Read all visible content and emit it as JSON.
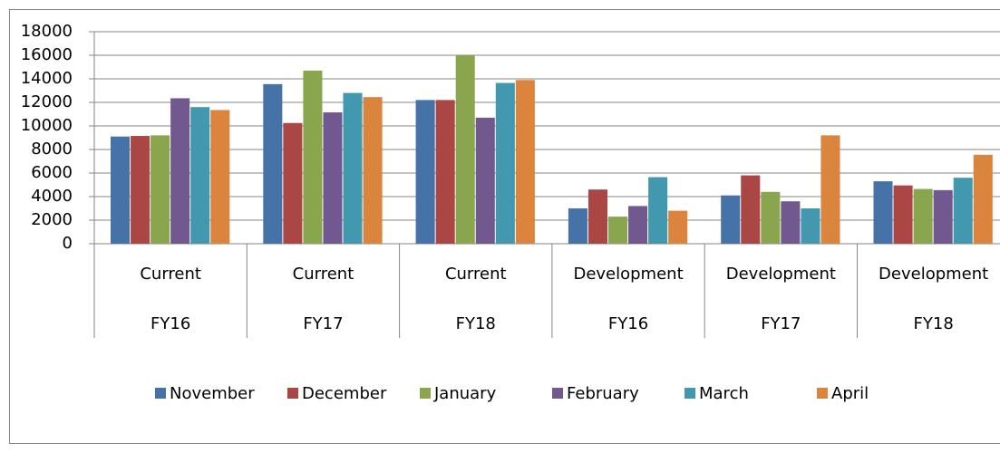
{
  "chart_data": {
    "type": "bar",
    "categories": [
      [
        "Current",
        "FY16"
      ],
      [
        "Current",
        "FY17"
      ],
      [
        "Current",
        "FY18"
      ],
      [
        "Development",
        "FY16"
      ],
      [
        "Development",
        "FY17"
      ],
      [
        "Development",
        "FY18"
      ]
    ],
    "series": [
      {
        "name": "November",
        "color": "#4572a7",
        "values": [
          9100,
          13550,
          12200,
          3000,
          4100,
          5300
        ]
      },
      {
        "name": "December",
        "color": "#aa4643",
        "values": [
          9150,
          10250,
          12200,
          4600,
          5800,
          4950
        ]
      },
      {
        "name": "January",
        "color": "#89a54e",
        "values": [
          9200,
          14700,
          16000,
          2300,
          4400,
          4650
        ]
      },
      {
        "name": "February",
        "color": "#71588f",
        "values": [
          12350,
          11150,
          10700,
          3200,
          3600,
          4550
        ]
      },
      {
        "name": "March",
        "color": "#4198af",
        "values": [
          11600,
          12800,
          13650,
          5650,
          3000,
          5600
        ]
      },
      {
        "name": "April",
        "color": "#db843d",
        "values": [
          11350,
          12450,
          13900,
          2800,
          9200,
          7550
        ]
      }
    ],
    "ylim": [
      0,
      18000
    ],
    "yticks": [
      0,
      2000,
      4000,
      6000,
      8000,
      10000,
      12000,
      14000,
      16000,
      18000
    ],
    "grid": true,
    "legend": "bottom"
  }
}
